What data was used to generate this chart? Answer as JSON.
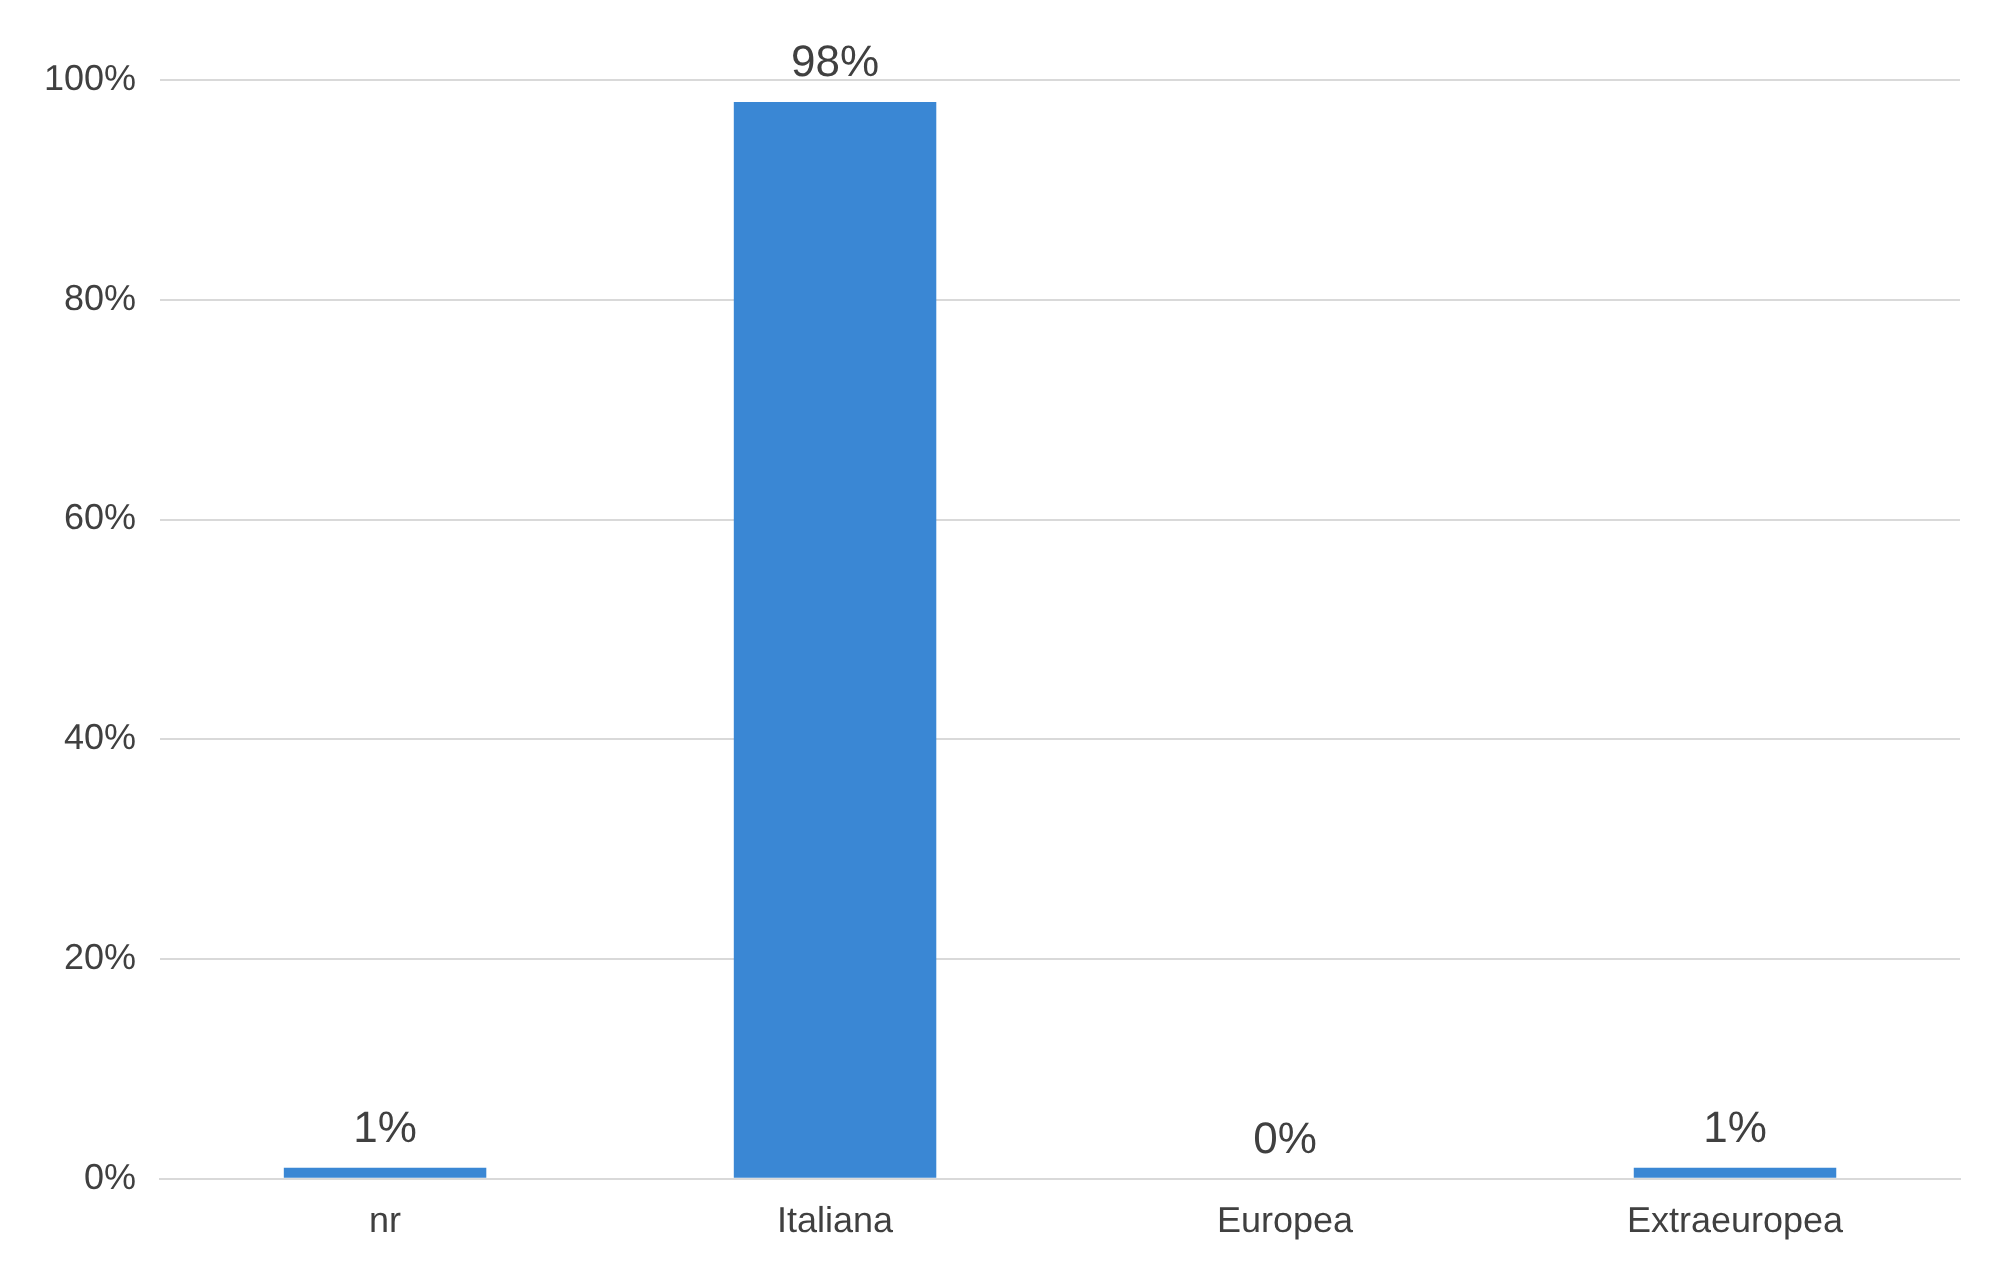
{
  "chart_data": {
    "type": "bar",
    "categories": [
      "nr",
      "Italiana",
      "Europea",
      "Extraeuropea"
    ],
    "values": [
      1,
      98,
      0,
      1
    ],
    "color": "#3a87d4",
    "value_labels": [
      "1%",
      "98%",
      "0%",
      "1%"
    ],
    "ylim": [
      0,
      100
    ],
    "yticks": [
      {
        "value": 0,
        "label": "0%"
      },
      {
        "value": 20,
        "label": "20%"
      },
      {
        "value": 40,
        "label": "40%"
      },
      {
        "value": 60,
        "label": "60%"
      },
      {
        "value": 80,
        "label": "80%"
      },
      {
        "value": 100,
        "label": "100%"
      }
    ],
    "grid": "y"
  }
}
